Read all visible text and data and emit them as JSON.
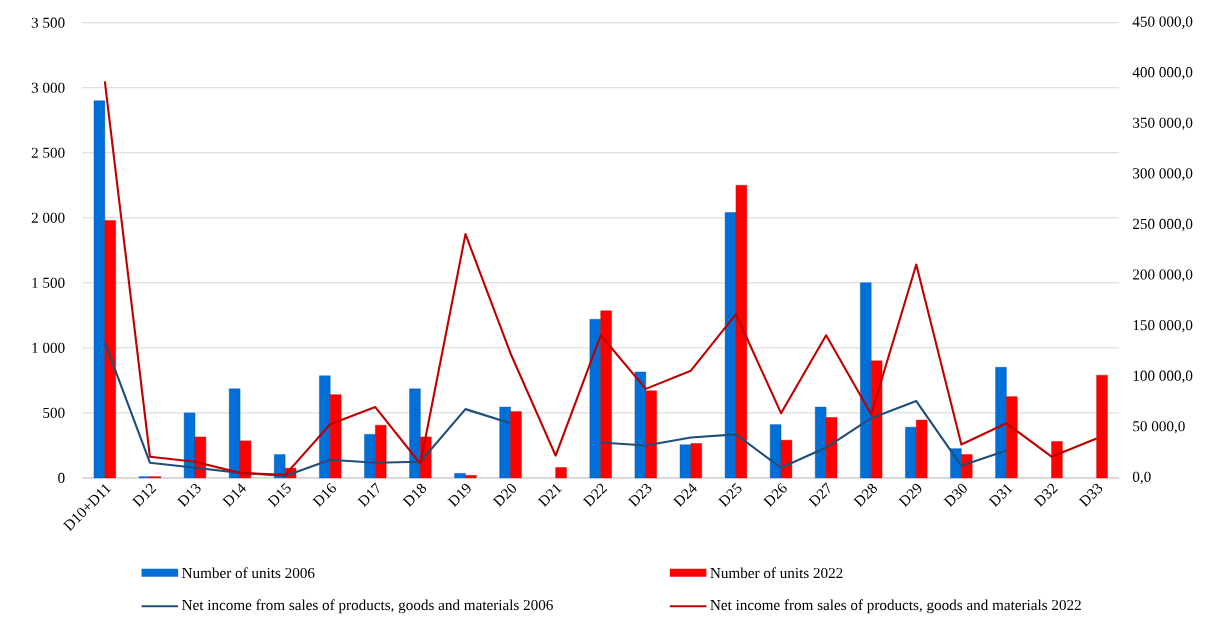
{
  "chart_data": {
    "type": "bar",
    "categories": [
      "D10+D11",
      "D12",
      "D13",
      "D14",
      "D15",
      "D16",
      "D17",
      "D18",
      "D19",
      "D20",
      "D21",
      "D22",
      "D23",
      "D24",
      "D25",
      "D26",
      "D27",
      "D28",
      "D29",
      "D30",
      "D31",
      "D32",
      "D33"
    ],
    "series": [
      {
        "name": "Number of units 2006",
        "color": "#0070d8",
        "values": [
          2900,
          10,
          500,
          685,
          180,
          785,
          335,
          685,
          35,
          545,
          null,
          1220,
          815,
          255,
          2040,
          410,
          545,
          1500,
          390,
          225,
          850,
          null,
          null
        ]
      },
      {
        "name": "Number of units 2022",
        "color": "#ff0000",
        "values": [
          1980,
          10,
          315,
          285,
          75,
          640,
          405,
          315,
          20,
          510,
          80,
          1285,
          670,
          265,
          2250,
          290,
          465,
          900,
          445,
          180,
          625,
          280,
          790
        ]
      },
      {
        "name": "Net income from sales of products, goods and materials 2006",
        "type": "line",
        "axis": "y2",
        "color": "#1f4e79",
        "values": [
          134000,
          15000,
          10000,
          5000,
          2000,
          18000,
          15000,
          16000,
          68000,
          54000,
          null,
          35000,
          32000,
          40000,
          43000,
          10000,
          30000,
          59000,
          76000,
          12000,
          27000,
          null,
          null
        ]
      },
      {
        "name": "Net income from sales of products, goods and materials 2022",
        "type": "line",
        "axis": "y2",
        "color": "#c00000",
        "values": [
          392000,
          21000,
          16000,
          5000,
          3000,
          53000,
          70000,
          14000,
          241000,
          123000,
          22000,
          141000,
          88000,
          106000,
          162000,
          64000,
          141000,
          63000,
          211000,
          33000,
          54000,
          21000,
          39000
        ]
      }
    ],
    "ylim": [
      0,
      3500
    ],
    "yticks": [
      0,
      500,
      {
        "value": 1000,
        "label": "1 000"
      },
      {
        "value": 1500,
        "label": "1 500"
      },
      {
        "value": 2000,
        "label": "2 000"
      },
      {
        "value": 2500,
        "label": "2 500"
      },
      {
        "value": 3000,
        "label": "3 000"
      },
      {
        "value": 3500,
        "label": "3 500"
      }
    ],
    "y2lim": [
      0,
      450000
    ],
    "y2ticks": [
      {
        "value": 0,
        "label": "0,0"
      },
      {
        "value": 50000,
        "label": "50 000,0"
      },
      {
        "value": 100000,
        "label": "100 000,0"
      },
      {
        "value": 150000,
        "label": "150 000,0"
      },
      {
        "value": 200000,
        "label": "200 000,0"
      },
      {
        "value": 250000,
        "label": "250 000,0"
      },
      {
        "value": 300000,
        "label": "300 000,0"
      },
      {
        "value": 350000,
        "label": "350 000,0"
      },
      {
        "value": 400000,
        "label": "400 000,0"
      },
      {
        "value": 450000,
        "label": "450 000,0"
      }
    ],
    "grid": "y",
    "legend": "bottom"
  }
}
